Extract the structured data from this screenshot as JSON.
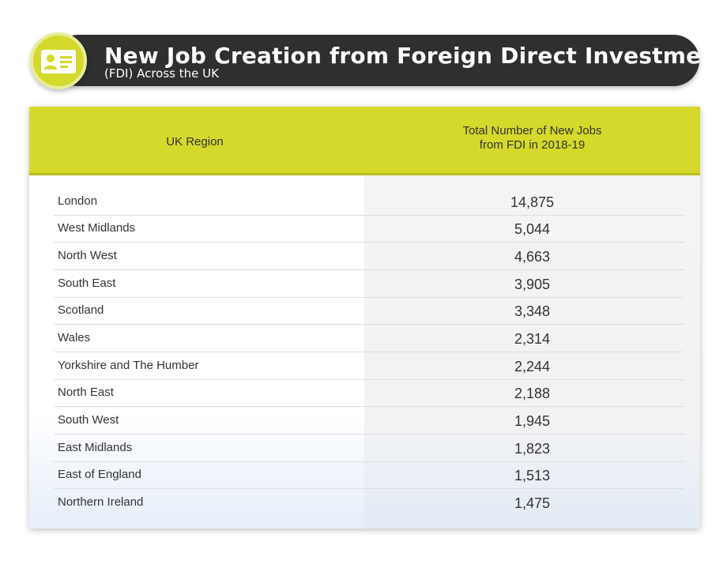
{
  "title": {
    "main": "New Job Creation from Foreign Direct Investment",
    "sub": "(FDI) Across the UK",
    "icon": "id-card-icon"
  },
  "colors": {
    "accent": "#d4d92b",
    "title_bar": "#2f2f2f"
  },
  "table": {
    "headers": {
      "region": "UK Region",
      "jobs_line1": "Total Number of New Jobs",
      "jobs_line2": "from FDI in 2018-19"
    },
    "rows": [
      {
        "region": "London",
        "jobs": "14,875"
      },
      {
        "region": "West Midlands",
        "jobs": "5,044"
      },
      {
        "region": "North West",
        "jobs": "4,663"
      },
      {
        "region": "South East",
        "jobs": "3,905"
      },
      {
        "region": "Scotland",
        "jobs": "3,348"
      },
      {
        "region": "Wales",
        "jobs": "2,314"
      },
      {
        "region": "Yorkshire and The Humber",
        "jobs": "2,244"
      },
      {
        "region": "North East",
        "jobs": "2,188"
      },
      {
        "region": "South West",
        "jobs": "1,945"
      },
      {
        "region": "East Midlands",
        "jobs": "1,823"
      },
      {
        "region": "East of England",
        "jobs": "1,513"
      },
      {
        "region": "Northern Ireland",
        "jobs": "1,475"
      }
    ]
  }
}
